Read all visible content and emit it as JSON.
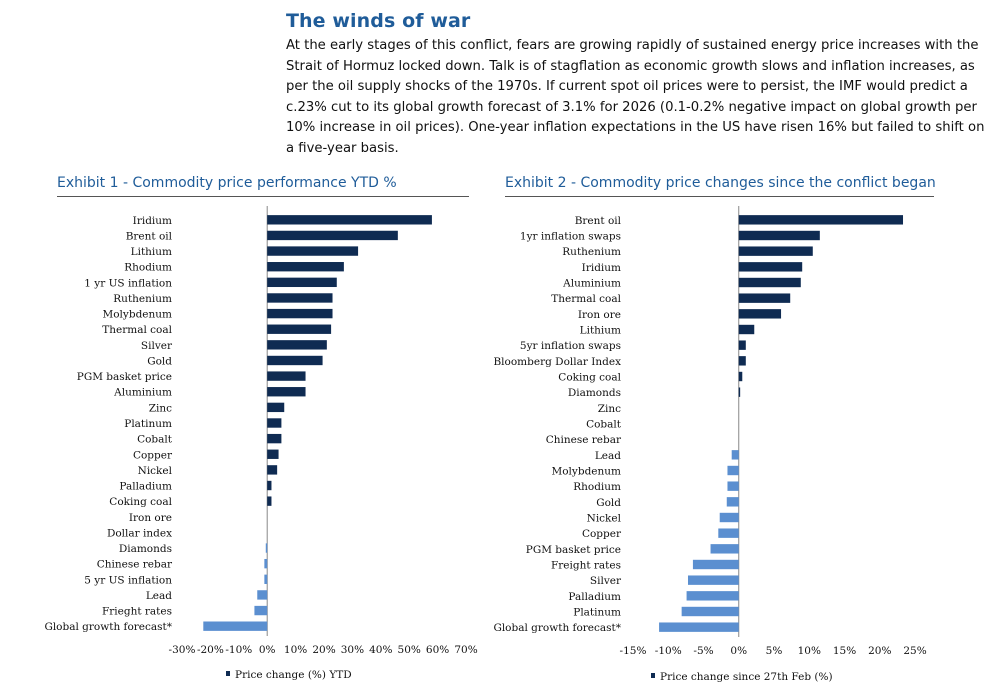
{
  "header": {
    "title": "The winds of war",
    "body": "At the early stages of this conflict, fears are growing rapidly of sustained energy price increases with the Strait of Hormuz locked down. Talk is of stagflation as economic growth slows and inflation increases, as per the oil supply shocks of the 1970s. If current spot oil prices were to persist, the IMF would predict a c.23% cut to its global growth forecast of 3.1% for 2026 (0.1-0.2% negative impact on global growth per 10% increase in oil prices). One-year inflation expectations in the US have risen 16% but failed to shift on a five-year basis."
  },
  "colors": {
    "positive": "#0f2b52",
    "negative": "#5b8fd0",
    "title": "#1f5c99"
  },
  "chart_data": [
    {
      "type": "bar",
      "orientation": "horizontal",
      "title": "Exhibit 1 - Commodity price performance YTD %",
      "legend": "Price change (%) YTD",
      "xlim": [
        -30,
        70
      ],
      "ticks": [
        -30,
        -20,
        -10,
        0,
        10,
        20,
        30,
        40,
        50,
        60,
        70
      ],
      "tick_labels": [
        "-30%",
        "-20%",
        "-10%",
        "0%",
        "10%",
        "20%",
        "30%",
        "40%",
        "50%",
        "60%",
        "70%"
      ],
      "categories": [
        "Iridium",
        "Brent oil",
        "Lithium",
        "Rhodium",
        "1 yr US inflation",
        "Ruthenium",
        "Molybdenum",
        "Thermal coal",
        "Silver",
        "Gold",
        "PGM basket price",
        "Aluminium",
        "Zinc",
        "Platinum",
        "Cobalt",
        "Copper",
        "Nickel",
        "Palladium",
        "Coking coal",
        "Iron ore",
        "Dollar index",
        "Diamonds",
        "Chinese rebar",
        "5 yr US inflation",
        "Lead",
        "Frieght rates",
        "Global growth forecast*"
      ],
      "values": [
        58,
        46,
        32,
        27,
        24.5,
        23,
        23,
        22.5,
        21,
        19.5,
        13.5,
        13.5,
        6,
        5,
        5,
        4,
        3.5,
        1.5,
        1.5,
        0,
        0,
        -0.5,
        -1,
        -1,
        -3.5,
        -4.5,
        -22.5
      ]
    },
    {
      "type": "bar",
      "orientation": "horizontal",
      "title": "Exhibit 2 - Commodity price changes since the conflict began",
      "legend": "Price change since 27th Feb (%)",
      "xlim": [
        -15,
        25
      ],
      "ticks": [
        -15,
        -10,
        -5,
        0,
        5,
        10,
        15,
        20,
        25
      ],
      "tick_labels": [
        "-15%",
        "-10%",
        "-5%",
        "0%",
        "5%",
        "10%",
        "15%",
        "20%",
        "25%"
      ],
      "categories": [
        "Brent oil",
        "1yr inflation swaps",
        "Ruthenium",
        "Iridium",
        "Aluminium",
        "Thermal coal",
        "Iron ore",
        "Lithium",
        "5yr inflation swaps",
        "Bloomberg Dollar Index",
        "Coking coal",
        "Diamonds",
        "Zinc",
        "Cobalt",
        "Chinese rebar",
        "Lead",
        "Molybdenum",
        "Rhodium",
        "Gold",
        "Nickel",
        "Copper",
        "PGM basket price",
        "Freight rates",
        "Silver",
        "Palladium",
        "Platinum",
        "Global growth forecast*"
      ],
      "values": [
        23.3,
        11.5,
        10.5,
        9,
        8.8,
        7.3,
        6,
        2.2,
        1,
        1,
        0.5,
        0.2,
        0,
        0,
        0,
        -1,
        -1.6,
        -1.6,
        -1.7,
        -2.7,
        -2.9,
        -4,
        -6.5,
        -7.2,
        -7.4,
        -8.1,
        -11.3
      ]
    }
  ]
}
